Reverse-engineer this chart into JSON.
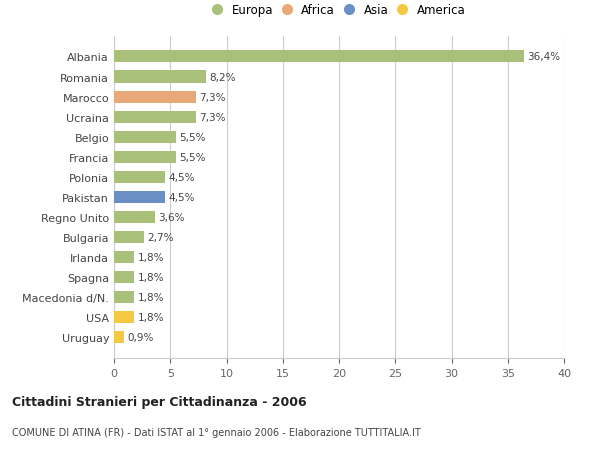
{
  "countries": [
    "Albania",
    "Romania",
    "Marocco",
    "Ucraina",
    "Belgio",
    "Francia",
    "Polonia",
    "Pakistan",
    "Regno Unito",
    "Bulgaria",
    "Irlanda",
    "Spagna",
    "Macedonia d/N.",
    "USA",
    "Uruguay"
  ],
  "values": [
    36.4,
    8.2,
    7.3,
    7.3,
    5.5,
    5.5,
    4.5,
    4.5,
    3.6,
    2.7,
    1.8,
    1.8,
    1.8,
    1.8,
    0.9
  ],
  "labels": [
    "36,4%",
    "8,2%",
    "7,3%",
    "7,3%",
    "5,5%",
    "5,5%",
    "4,5%",
    "4,5%",
    "3,6%",
    "2,7%",
    "1,8%",
    "1,8%",
    "1,8%",
    "1,8%",
    "0,9%"
  ],
  "colors": [
    "#a8c07a",
    "#a8c07a",
    "#e8a878",
    "#a8c07a",
    "#a8c07a",
    "#a8c07a",
    "#a8c07a",
    "#6b8ec4",
    "#a8c07a",
    "#a8c07a",
    "#a8c07a",
    "#a8c07a",
    "#a8c07a",
    "#f5c842",
    "#f5c842"
  ],
  "legend_labels": [
    "Europa",
    "Africa",
    "Asia",
    "America"
  ],
  "legend_colors": [
    "#a8c07a",
    "#e8a878",
    "#6b8ec4",
    "#f5c842"
  ],
  "title": "Cittadini Stranieri per Cittadinanza - 2006",
  "subtitle": "COMUNE DI ATINA (FR) - Dati ISTAT al 1° gennaio 2006 - Elaborazione TUTTITALIA.IT",
  "xlim": [
    0,
    40
  ],
  "xticks": [
    0,
    5,
    10,
    15,
    20,
    25,
    30,
    35,
    40
  ],
  "background_color": "#ffffff",
  "grid_color": "#cccccc",
  "bar_height": 0.6
}
